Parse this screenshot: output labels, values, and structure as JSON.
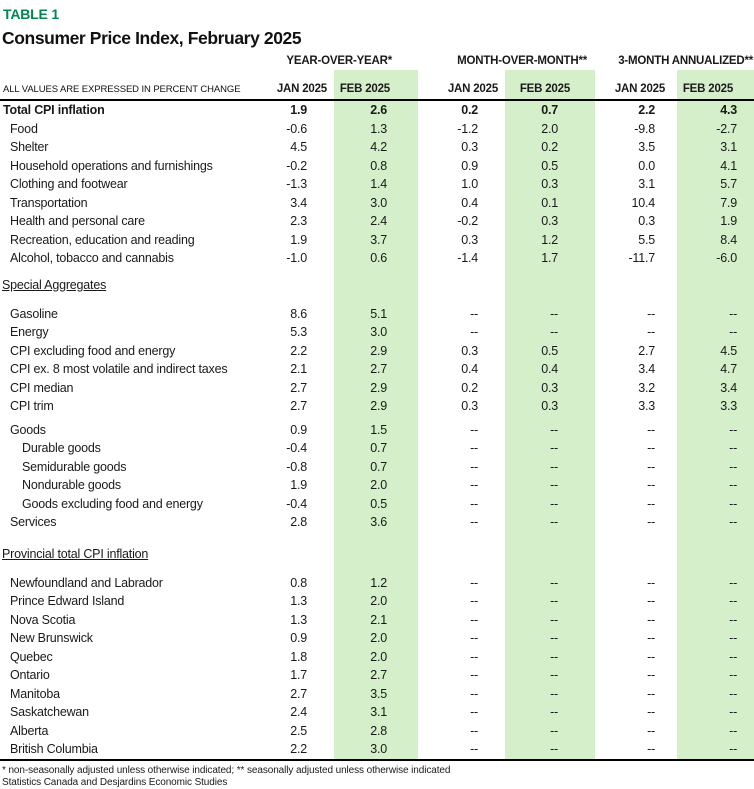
{
  "header": {
    "table_tag": "TABLE 1",
    "title": "Consumer Price Index, February 2025",
    "note_label": "ALL VALUES ARE EXPRESSED IN PERCENT CHANGE",
    "groups": [
      {
        "label": "YEAR-OVER-YEAR*"
      },
      {
        "label": "MONTH-OVER-MONTH**"
      },
      {
        "label": "3-MONTH ANNUALIZED**"
      }
    ],
    "subcolumns": [
      "JAN 2025",
      "FEB 2025",
      "JAN 2025",
      "FEB 2025",
      "JAN 2025",
      "FEB 2025"
    ]
  },
  "colors": {
    "accent_green": "#00874e",
    "highlight_green": "#d4efca"
  },
  "sections": [
    {
      "rows": [
        {
          "label": "Total CPI inflation",
          "bold": true,
          "indent": 0,
          "values": [
            "1.9",
            "2.6",
            "0.2",
            "0.7",
            "2.2",
            "4.3"
          ]
        },
        {
          "label": "Food",
          "indent": 1,
          "values": [
            "-0.6",
            "1.3",
            "-1.2",
            "2.0",
            "-9.8",
            "-2.7"
          ]
        },
        {
          "label": "Shelter",
          "indent": 1,
          "values": [
            "4.5",
            "4.2",
            "0.3",
            "0.2",
            "3.5",
            "3.1"
          ]
        },
        {
          "label": "Household operations and furnishings",
          "indent": 1,
          "values": [
            "-0.2",
            "0.8",
            "0.9",
            "0.5",
            "0.0",
            "4.1"
          ]
        },
        {
          "label": "Clothing and footwear",
          "indent": 1,
          "values": [
            "-1.3",
            "1.4",
            "1.0",
            "0.3",
            "3.1",
            "5.7"
          ]
        },
        {
          "label": "Transportation",
          "indent": 1,
          "values": [
            "3.4",
            "3.0",
            "0.4",
            "0.1",
            "10.4",
            "7.9"
          ]
        },
        {
          "label": "Health and personal care",
          "indent": 1,
          "values": [
            "2.3",
            "2.4",
            "-0.2",
            "0.3",
            "0.3",
            "1.9"
          ]
        },
        {
          "label": "Recreation, education and reading",
          "indent": 1,
          "values": [
            "1.9",
            "3.7",
            "0.3",
            "1.2",
            "5.5",
            "8.4"
          ]
        },
        {
          "label": "Alcohol, tobacco and cannabis",
          "indent": 1,
          "values": [
            "-1.0",
            "0.6",
            "-1.4",
            "1.7",
            "-11.7",
            "-6.0"
          ]
        }
      ]
    },
    {
      "header": "Special Aggregates",
      "gap_before": 8,
      "gap_after": 10,
      "rows": [
        {
          "label": "Gasoline",
          "indent": 1,
          "values": [
            "8.6",
            "5.1",
            "--",
            "--",
            "--",
            "--"
          ]
        },
        {
          "label": "Energy",
          "indent": 1,
          "values": [
            "5.3",
            "3.0",
            "--",
            "--",
            "--",
            "--"
          ]
        },
        {
          "label": "CPI excluding food and energy",
          "indent": 1,
          "values": [
            "2.2",
            "2.9",
            "0.3",
            "0.5",
            "2.7",
            "4.5"
          ]
        },
        {
          "label": "CPI ex. 8 most volatile and indirect taxes",
          "indent": 1,
          "values": [
            "2.1",
            "2.7",
            "0.4",
            "0.4",
            "3.4",
            "4.7"
          ]
        },
        {
          "label": "CPI median",
          "indent": 1,
          "values": [
            "2.7",
            "2.9",
            "0.2",
            "0.3",
            "3.2",
            "3.4"
          ]
        },
        {
          "label": "CPI trim",
          "indent": 1,
          "values": [
            "2.7",
            "2.9",
            "0.3",
            "0.3",
            "3.3",
            "3.3"
          ]
        },
        {
          "label": "Goods",
          "indent": 1,
          "gap_before": 5,
          "values": [
            "0.9",
            "1.5",
            "--",
            "--",
            "--",
            "--"
          ]
        },
        {
          "label": "Durable goods",
          "indent": 2,
          "values": [
            "-0.4",
            "0.7",
            "--",
            "--",
            "--",
            "--"
          ]
        },
        {
          "label": "Semidurable goods",
          "indent": 2,
          "values": [
            "-0.8",
            "0.7",
            "--",
            "--",
            "--",
            "--"
          ]
        },
        {
          "label": "Nondurable goods",
          "indent": 2,
          "values": [
            "1.9",
            "2.0",
            "--",
            "--",
            "--",
            "--"
          ]
        },
        {
          "label": "Goods excluding food and energy",
          "indent": 2,
          "values": [
            "-0.4",
            "0.5",
            "--",
            "--",
            "--",
            "--"
          ]
        },
        {
          "label": "Services",
          "indent": 1,
          "values": [
            "2.8",
            "3.6",
            "--",
            "--",
            "--",
            "--"
          ]
        }
      ]
    },
    {
      "header": "Provincial total CPI inflation",
      "gap_before": 13,
      "gap_after": 10,
      "rows": [
        {
          "label": "Newfoundland and Labrador",
          "indent": 1,
          "values": [
            "0.8",
            "1.2",
            "--",
            "--",
            "--",
            "--"
          ]
        },
        {
          "label": "Prince Edward Island",
          "indent": 1,
          "values": [
            "1.3",
            "2.0",
            "--",
            "--",
            "--",
            "--"
          ]
        },
        {
          "label": "Nova Scotia",
          "indent": 1,
          "values": [
            "1.3",
            "2.1",
            "--",
            "--",
            "--",
            "--"
          ]
        },
        {
          "label": "New Brunswick",
          "indent": 1,
          "values": [
            "0.9",
            "2.0",
            "--",
            "--",
            "--",
            "--"
          ]
        },
        {
          "label": "Quebec",
          "indent": 1,
          "values": [
            "1.8",
            "2.0",
            "--",
            "--",
            "--",
            "--"
          ]
        },
        {
          "label": "Ontario",
          "indent": 1,
          "values": [
            "1.7",
            "2.7",
            "--",
            "--",
            "--",
            "--"
          ]
        },
        {
          "label": "Manitoba",
          "indent": 1,
          "values": [
            "2.7",
            "3.5",
            "--",
            "--",
            "--",
            "--"
          ]
        },
        {
          "label": "Saskatchewan",
          "indent": 1,
          "values": [
            "2.4",
            "3.1",
            "--",
            "--",
            "--",
            "--"
          ]
        },
        {
          "label": "Alberta",
          "indent": 1,
          "values": [
            "2.5",
            "2.8",
            "--",
            "--",
            "--",
            "--"
          ]
        },
        {
          "label": "British Columbia",
          "indent": 1,
          "values": [
            "2.2",
            "3.0",
            "--",
            "--",
            "--",
            "--"
          ]
        }
      ]
    }
  ],
  "footnotes": [
    "* non-seasonally adjusted unless otherwise indicated; ** seasonally adjusted unless otherwise indicated",
    "Statistics Canada and Desjardins Economic Studies"
  ]
}
